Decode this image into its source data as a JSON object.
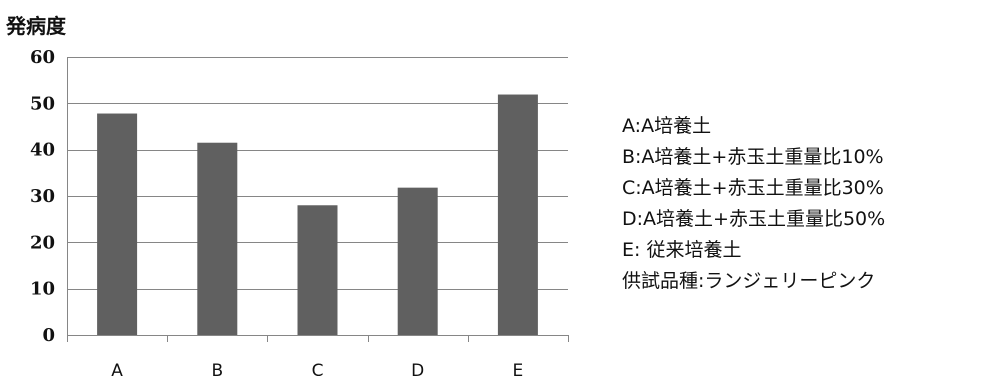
{
  "chart_data": {
    "type": "bar",
    "title": "",
    "ylabel": "発病度",
    "xlabel": "",
    "categories": [
      "A",
      "B",
      "C",
      "D",
      "E"
    ],
    "values": [
      47.8,
      41.5,
      28.0,
      31.8,
      51.9
    ],
    "ylim": [
      0,
      60
    ],
    "yticks": [
      "0",
      "10",
      "20",
      "30",
      "40",
      "50",
      "60"
    ],
    "grid": true,
    "legend_placement": "right",
    "colors": {
      "bar": "#606060",
      "grid": "#868686",
      "axis": "#868686"
    }
  },
  "legend": {
    "items": [
      "A:A培養土",
      "B:A培養土+赤玉土重量比10%",
      "C:A培養土+赤玉土重量比30%",
      "D:A培養土+赤玉土重量比50%",
      "E: 従来培養土",
      "供試品種:ランジェリーピンク"
    ]
  }
}
